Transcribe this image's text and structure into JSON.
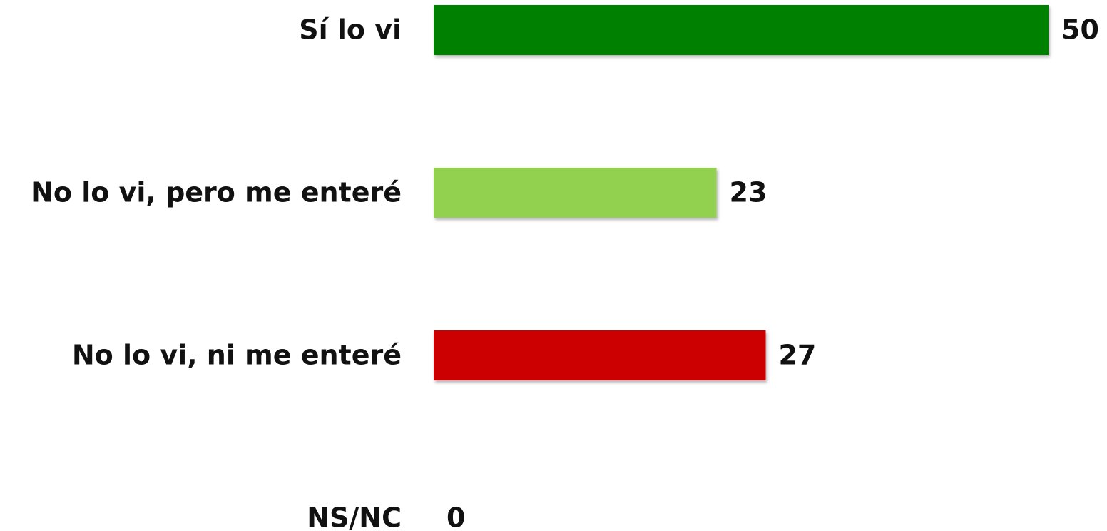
{
  "chart_data": {
    "type": "bar",
    "orientation": "horizontal",
    "categories": [
      "Sí lo vi",
      "No lo vi, pero me enteré",
      "No lo vi, ni me enteré",
      "NS/NC"
    ],
    "values": [
      50,
      23,
      27,
      0
    ],
    "colors": [
      "#008000",
      "#92d050",
      "#cc0000",
      "#a6a6a6"
    ]
  }
}
